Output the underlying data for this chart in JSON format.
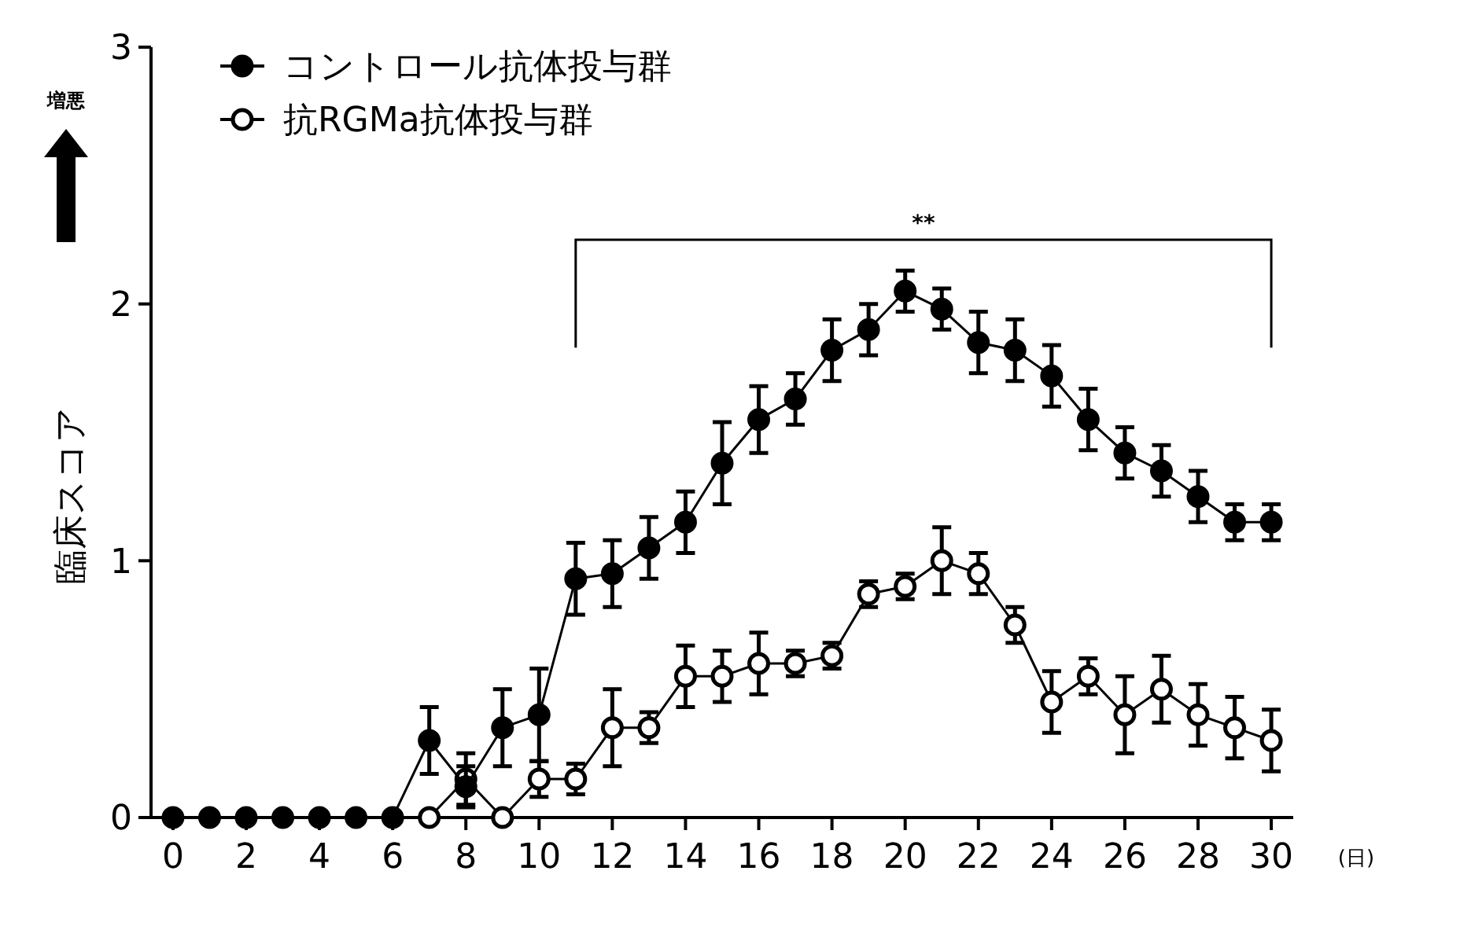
{
  "chart_data": {
    "type": "line",
    "ylabel": "臨床スコア",
    "xlabel": "(日)",
    "annotations": [
      "**",
      "増悪"
    ],
    "x": [
      0,
      1,
      2,
      3,
      4,
      5,
      6,
      7,
      8,
      9,
      10,
      11,
      12,
      13,
      14,
      15,
      16,
      17,
      18,
      19,
      20,
      21,
      22,
      23,
      24,
      25,
      26,
      27,
      28,
      29,
      30
    ],
    "xlim": [
      -0.6,
      30.6
    ],
    "xticks": [
      0,
      2,
      4,
      6,
      8,
      10,
      12,
      14,
      16,
      18,
      20,
      22,
      24,
      26,
      28,
      30
    ],
    "ylim": [
      0,
      3
    ],
    "yticks": [
      0,
      1,
      2,
      3
    ],
    "legend": "top left",
    "marker": "circle",
    "line_style": "solid",
    "grid": false,
    "series": [
      {
        "name": "コントロール抗体投与群",
        "color": "#000000",
        "values": [
          0,
          0,
          0,
          0,
          0,
          0,
          0,
          0.3,
          0.12,
          0.35,
          0.4,
          0.93,
          0.95,
          1.05,
          1.15,
          1.38,
          1.55,
          1.63,
          1.82,
          1.9,
          2.05,
          1.98,
          1.85,
          1.82,
          1.72,
          1.55,
          1.42,
          1.35,
          1.25,
          1.15,
          1.15
        ],
        "errors": [
          null,
          null,
          null,
          null,
          null,
          null,
          null,
          0.13,
          0.08,
          0.15,
          0.18,
          0.14,
          0.13,
          0.12,
          0.12,
          0.16,
          0.13,
          0.1,
          0.12,
          0.1,
          0.08,
          0.08,
          0.12,
          0.12,
          0.12,
          0.12,
          0.1,
          0.1,
          0.1,
          0.07,
          0.07
        ]
      },
      {
        "name": "抗RGMa抗体投与群",
        "color": "#000000",
        "values": [
          null,
          null,
          null,
          null,
          null,
          null,
          null,
          0,
          0.15,
          0,
          0.15,
          0.15,
          0.35,
          0.35,
          0.55,
          0.55,
          0.6,
          0.6,
          0.63,
          0.87,
          0.9,
          1.0,
          0.95,
          0.75,
          0.45,
          0.55,
          0.4,
          0.5,
          0.4,
          0.35,
          0.3
        ],
        "errors": [
          null,
          null,
          null,
          null,
          null,
          null,
          null,
          null,
          0.1,
          null,
          0.07,
          0.06,
          0.15,
          0.06,
          0.12,
          0.1,
          0.12,
          0.05,
          0.05,
          0.05,
          0.05,
          0.13,
          0.08,
          0.07,
          0.12,
          0.07,
          0.15,
          0.13,
          0.12,
          0.12,
          0.12
        ]
      }
    ]
  }
}
